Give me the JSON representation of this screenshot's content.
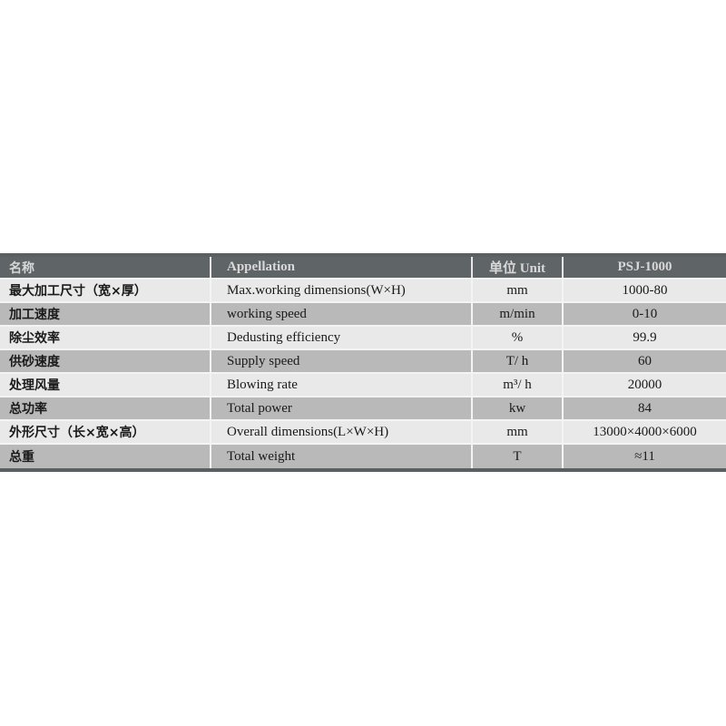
{
  "table": {
    "headers": [
      "名称",
      "Appellation",
      "单位 Unit",
      "PSJ-1000"
    ],
    "rows": [
      {
        "cn": "最大加工尺寸（宽×厚）",
        "en": "Max.working dimensions(W×H)",
        "unit": "mm",
        "value": "1000-80"
      },
      {
        "cn": "加工速度",
        "en": "working speed",
        "unit": "m/min",
        "value": "0-10"
      },
      {
        "cn": "除尘效率",
        "en": "Dedusting efficiency",
        "unit": "%",
        "value": "99.9"
      },
      {
        "cn": "供砂速度",
        "en": "Supply speed",
        "unit": "T/ h",
        "value": "60"
      },
      {
        "cn": "处理风量",
        "en": "Blowing rate",
        "unit": "m³/ h",
        "value": "20000"
      },
      {
        "cn": "总功率",
        "en": "Total power",
        "unit": "kw",
        "value": "84"
      },
      {
        "cn": "外形尺寸（长×宽×高）",
        "en": "Overall dimensions(L×W×H)",
        "unit": "mm",
        "value": "13000×4000×6000"
      },
      {
        "cn": "总重",
        "en": "Total weight",
        "unit": "T",
        "value": "≈11"
      }
    ]
  },
  "colors": {
    "header_bg": "#5f6467",
    "row_light": "#e9e9e9",
    "row_dark": "#b9b9b9"
  }
}
